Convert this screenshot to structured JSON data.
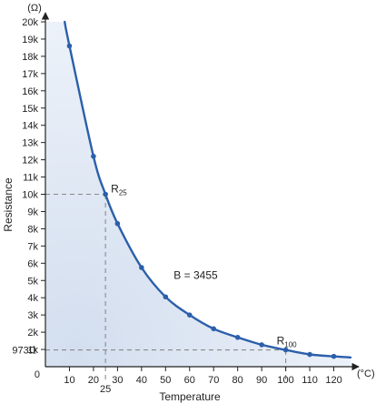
{
  "chart_data": {
    "type": "line",
    "title": "",
    "xlabel": "Temperature",
    "ylabel": "Resistance",
    "x_unit": "(°C)",
    "y_unit": "(Ω)",
    "xlim": [
      0,
      130
    ],
    "ylim": [
      0,
      20000
    ],
    "x_ticks": [
      10,
      20,
      30,
      40,
      50,
      60,
      70,
      80,
      90,
      100,
      110,
      120
    ],
    "x_tick_labels": [
      "10",
      "20",
      "30",
      "40",
      "50",
      "60",
      "70",
      "80",
      "90",
      "100",
      "110",
      "120"
    ],
    "y_ticks": [
      1000,
      2000,
      3000,
      4000,
      5000,
      6000,
      7000,
      8000,
      9000,
      10000,
      11000,
      12000,
      13000,
      14000,
      15000,
      16000,
      17000,
      18000,
      19000,
      20000
    ],
    "y_tick_labels": [
      "1k",
      "2k",
      "3k",
      "4k",
      "5k",
      "6k",
      "7k",
      "8k",
      "9k",
      "10k",
      "11k",
      "12k",
      "13k",
      "14k",
      "15k",
      "16k",
      "17k",
      "18k",
      "19k",
      "20k"
    ],
    "origin_label": "0",
    "grid": false,
    "series": [
      {
        "color": "#2b5faa",
        "points": [
          [
            10,
            18600
          ],
          [
            20,
            12200
          ],
          [
            25,
            10000
          ],
          [
            30,
            8300
          ],
          [
            40,
            5750
          ],
          [
            50,
            4050
          ],
          [
            60,
            3000
          ],
          [
            70,
            2200
          ],
          [
            80,
            1700
          ],
          [
            90,
            1270
          ],
          [
            100,
            973
          ],
          [
            110,
            710
          ],
          [
            120,
            600
          ]
        ],
        "curve_start": [
          8,
          20000
        ],
        "curve_end": [
          127,
          540
        ]
      }
    ],
    "reference_lines": [
      {
        "axis": "y",
        "value": 10000,
        "until_x": 25
      },
      {
        "axis": "x",
        "value": 25,
        "until_y": 10000
      },
      {
        "axis": "y",
        "value": 973,
        "until_x": 100
      },
      {
        "axis": "x",
        "value": 100,
        "until_y": 973
      }
    ],
    "ref_x_label": "25",
    "ref_y_label": "973Ω",
    "annotations": {
      "r25_main": "R",
      "r25_sub": "25",
      "r100_main": "R",
      "r100_sub": "100",
      "b_value": "B = 3455"
    },
    "colors": {
      "line": "#2b5faa",
      "fill_light": "#eef3fa",
      "fill_dark": "#d3deef",
      "reference": "#8a8a8a",
      "axis": "#222222"
    }
  }
}
